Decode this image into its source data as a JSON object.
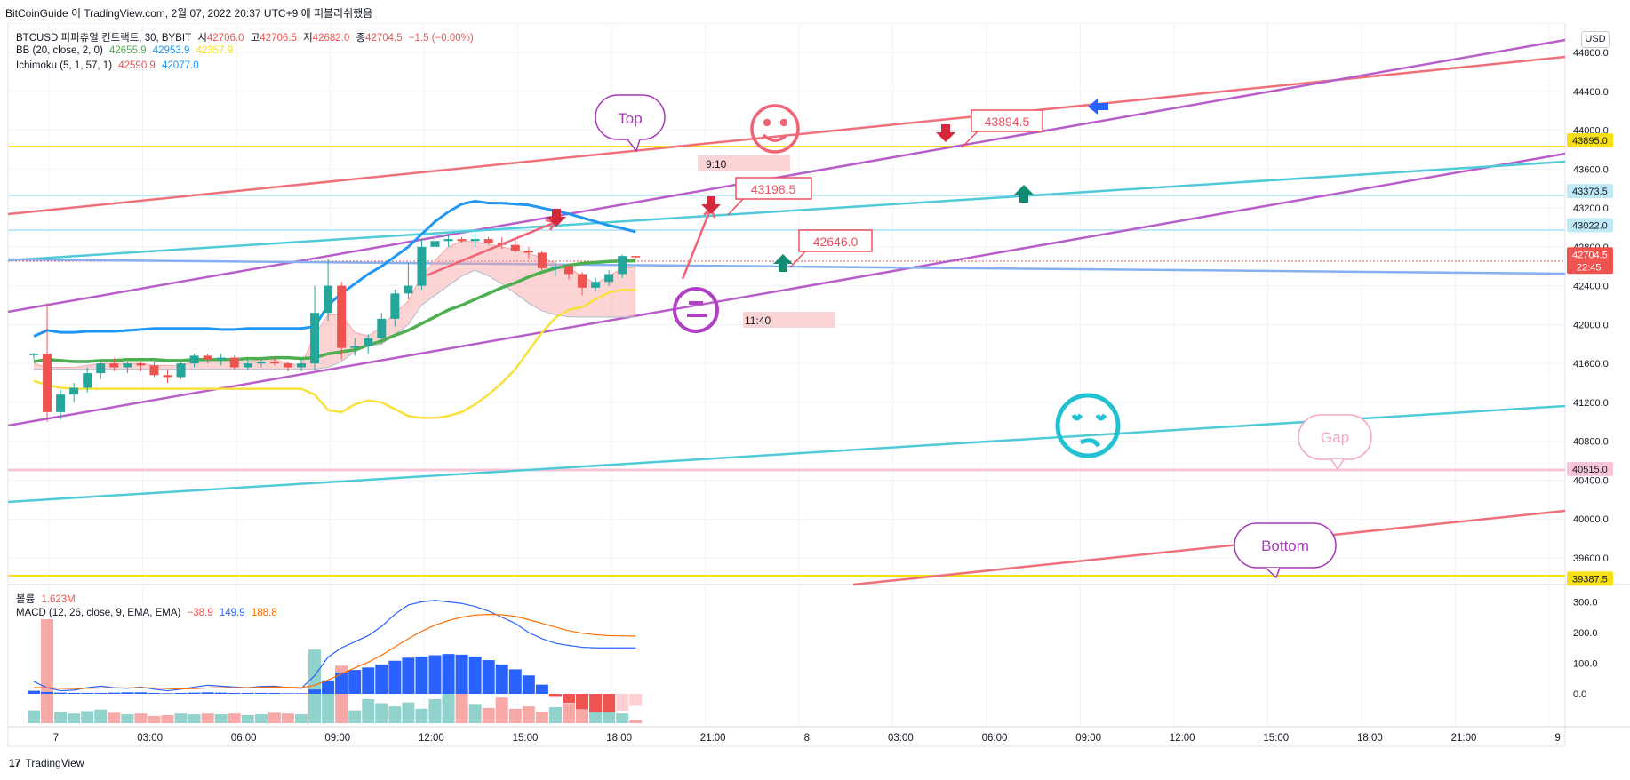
{
  "header": {
    "caption": "BitCoinGuide 이 TradingView.com, 2월 07, 2022 20:37 UTC+9 에 퍼블리쉬했음"
  },
  "legend": {
    "symbol": "BTCUSD 퍼피츄얼 컨트랙트, 30, BYBIT",
    "open_label": "시",
    "open": "42706.0",
    "high_label": "고",
    "high": "42706.5",
    "low_label": "저",
    "low": "42682.0",
    "close_label": "종",
    "close": "42704.5",
    "change": "−1.5 (−0.00%)",
    "bb_label": "BB (20, close, 2, 0)",
    "bb_basis": "42655.9",
    "bb_upper": "42953.9",
    "bb_lower": "42357.9",
    "ichimoku_label": "Ichimoku (5, 1, 57, 1)",
    "ichi_a": "42590.9",
    "ichi_b": "42077.0",
    "volume_label": "볼륨",
    "volume": "1.623M",
    "macd_label": "MACD (12, 26, close, 9, EMA, EMA)",
    "macd_hist": "−38.9",
    "macd": "149.9",
    "macd_signal": "188.8"
  },
  "currency_button": "USD",
  "price_axis": {
    "ticks": [
      "44800.0",
      "44400.0",
      "44000.0",
      "43600.0",
      "43200.0",
      "42800.0",
      "42400.0",
      "42000.0",
      "41600.0",
      "41200.0",
      "40800.0",
      "40400.0",
      "40000.0",
      "39600.0"
    ],
    "tags": [
      {
        "value": "43895.0",
        "bg": "#f7e017",
        "fg": "#131722"
      },
      {
        "value": "43373.5",
        "bg": "#bfe9f5",
        "fg": "#131722"
      },
      {
        "value": "43022.0",
        "bg": "#bfe9f5",
        "fg": "#131722"
      },
      {
        "value": "42704.5",
        "bg": "#ef5350",
        "fg": "#ffffff"
      },
      {
        "value": "40515.0",
        "bg": "#f8c4d8",
        "fg": "#131722"
      },
      {
        "value": "39387.5",
        "bg": "#f7e017",
        "fg": "#131722"
      }
    ],
    "countdown": "22:45"
  },
  "macd_axis": {
    "ticks": [
      "300.0",
      "200.0",
      "100.0",
      "0.0"
    ]
  },
  "time_axis": {
    "ticks": [
      "7",
      "03:00",
      "06:00",
      "09:00",
      "12:00",
      "15:00",
      "18:00",
      "21:00",
      "8",
      "03:00",
      "06:00",
      "09:00",
      "12:00",
      "15:00",
      "18:00",
      "21:00",
      "9"
    ]
  },
  "annotations": {
    "top": "Top",
    "bottom": "Bottom",
    "gap": "Gap",
    "price1": "43894.5",
    "price2": "43198.5",
    "price3": "42646.0",
    "time1": "9:10",
    "time2": "11:40"
  },
  "footer": {
    "brand": "TradingView"
  },
  "chart_data": {
    "type": "candlestick",
    "symbol": "BTCUSD",
    "timeframe": "30",
    "y_range": [
      39300,
      45000
    ],
    "candles": [
      [
        41690,
        41710,
        41640,
        41700
      ],
      [
        41700,
        42220,
        41000,
        41100
      ],
      [
        41100,
        41330,
        41020,
        41280
      ],
      [
        41280,
        41400,
        41200,
        41350
      ],
      [
        41350,
        41560,
        41300,
        41500
      ],
      [
        41500,
        41640,
        41440,
        41600
      ],
      [
        41600,
        41660,
        41520,
        41560
      ],
      [
        41560,
        41620,
        41500,
        41600
      ],
      [
        41600,
        41620,
        41520,
        41580
      ],
      [
        41580,
        41620,
        41460,
        41480
      ],
      [
        41480,
        41540,
        41400,
        41460
      ],
      [
        41460,
        41620,
        41440,
        41600
      ],
      [
        41600,
        41700,
        41560,
        41680
      ],
      [
        41680,
        41700,
        41600,
        41640
      ],
      [
        41640,
        41700,
        41580,
        41660
      ],
      [
        41660,
        41680,
        41540,
        41560
      ],
      [
        41560,
        41640,
        41540,
        41600
      ],
      [
        41600,
        41640,
        41560,
        41620
      ],
      [
        41620,
        41660,
        41580,
        41600
      ],
      [
        41600,
        41620,
        41520,
        41560
      ],
      [
        41560,
        41640,
        41520,
        41600
      ],
      [
        41600,
        42400,
        41540,
        42120
      ],
      [
        42120,
        42680,
        42040,
        42400
      ],
      [
        42400,
        42440,
        41640,
        41760
      ],
      [
        41760,
        41860,
        41680,
        41780
      ],
      [
        41780,
        41900,
        41700,
        41860
      ],
      [
        41860,
        42120,
        41800,
        42060
      ],
      [
        42060,
        42360,
        41980,
        42320
      ],
      [
        42320,
        42640,
        42260,
        42400
      ],
      [
        42400,
        42880,
        42360,
        42800
      ],
      [
        42800,
        42920,
        42660,
        42860
      ],
      [
        42860,
        42920,
        42800,
        42880
      ],
      [
        42880,
        42900,
        42840,
        42860
      ],
      [
        42860,
        42980,
        42800,
        42880
      ],
      [
        42880,
        42900,
        42820,
        42840
      ],
      [
        42840,
        42900,
        42780,
        42820
      ],
      [
        42820,
        42880,
        42740,
        42760
      ],
      [
        42760,
        42800,
        42680,
        42740
      ],
      [
        42740,
        42760,
        42560,
        42580
      ],
      [
        42580,
        42640,
        42500,
        42600
      ],
      [
        42600,
        42620,
        42460,
        42520
      ],
      [
        42520,
        42540,
        42300,
        42380
      ],
      [
        42380,
        42480,
        42340,
        42440
      ],
      [
        42440,
        42560,
        42400,
        42520
      ],
      [
        42520,
        42720,
        42480,
        42706
      ],
      [
        42706,
        42706.5,
        42682,
        42704.5
      ]
    ],
    "bb_basis": [
      41620,
      41640,
      41630,
      41620,
      41620,
      41630,
      41630,
      41640,
      41640,
      41640,
      41630,
      41630,
      41640,
      41640,
      41640,
      41640,
      41650,
      41650,
      41660,
      41660,
      41650,
      41660,
      41700,
      41720,
      41740,
      41790,
      41830,
      41890,
      41940,
      42010,
      42080,
      42150,
      42200,
      42260,
      42320,
      42380,
      42430,
      42490,
      42540,
      42580,
      42610,
      42630,
      42640,
      42650,
      42655,
      42656
    ],
    "bb_upper": [
      41880,
      41940,
      41920,
      41920,
      41930,
      41930,
      41930,
      41940,
      41950,
      41960,
      41960,
      41960,
      41960,
      41960,
      41950,
      41950,
      41960,
      41960,
      41960,
      41960,
      41960,
      41980,
      42200,
      42320,
      42420,
      42520,
      42600,
      42700,
      42800,
      42930,
      43060,
      43160,
      43240,
      43270,
      43250,
      43250,
      43240,
      43230,
      43200,
      43170,
      43140,
      43100,
      43060,
      43020,
      42990,
      42954
    ],
    "bb_lower": [
      41420,
      41380,
      41350,
      41340,
      41340,
      41340,
      41340,
      41340,
      41340,
      41340,
      41340,
      41340,
      41340,
      41340,
      41340,
      41340,
      41340,
      41340,
      41340,
      41340,
      41340,
      41280,
      41120,
      41100,
      41180,
      41220,
      41200,
      41130,
      41060,
      41040,
      41040,
      41060,
      41100,
      41180,
      41280,
      41400,
      41540,
      41730,
      41920,
      42070,
      42150,
      42180,
      42260,
      42330,
      42358,
      42358
    ],
    "ichimoku_a": [
      41600,
      41560,
      41560,
      41560,
      41580,
      41600,
      41600,
      41600,
      41600,
      41580,
      41580,
      41580,
      41620,
      41640,
      41640,
      41620,
      41620,
      41640,
      41640,
      41600,
      41580,
      41900,
      42100,
      42100,
      41920,
      41880,
      41980,
      42120,
      42240,
      42500,
      42660,
      42800,
      42860,
      42850,
      42830,
      42800,
      42770,
      42730,
      42690,
      42630,
      42580,
      42500,
      42420,
      42500,
      42580,
      42590
    ],
    "ichimoku_b": [
      41540,
      41540,
      41540,
      41540,
      41540,
      41540,
      41540,
      41540,
      41540,
      41540,
      41540,
      41540,
      41540,
      41540,
      41540,
      41540,
      41540,
      41540,
      41540,
      41540,
      41540,
      41540,
      41560,
      41620,
      41720,
      41780,
      41800,
      41900,
      42000,
      42200,
      42300,
      42400,
      42500,
      42560,
      42500,
      42420,
      42320,
      42220,
      42140,
      42100,
      42080,
      42077,
      42077,
      42077,
      42077,
      42077
    ],
    "volume": [
      160,
      1300,
      140,
      120,
      150,
      170,
      130,
      110,
      120,
      90,
      100,
      120,
      110,
      120,
      110,
      120,
      100,
      110,
      130,
      120,
      110,
      920,
      410,
      720,
      160,
      300,
      250,
      210,
      260,
      180,
      300,
      610,
      390,
      230,
      190,
      320,
      180,
      210,
      140,
      200,
      240,
      330,
      190,
      140,
      120,
      40
    ],
    "volume_up": [
      true,
      false,
      true,
      true,
      true,
      true,
      false,
      true,
      false,
      false,
      false,
      true,
      true,
      false,
      true,
      false,
      true,
      true,
      false,
      false,
      true,
      true,
      true,
      false,
      true,
      true,
      true,
      true,
      true,
      true,
      true,
      true,
      false,
      true,
      false,
      false,
      false,
      false,
      false,
      true,
      false,
      false,
      true,
      true,
      true,
      false
    ],
    "macd_hist": [
      10,
      6,
      4,
      3,
      3,
      3,
      4,
      5,
      5,
      3,
      2,
      3,
      4,
      5,
      4,
      3,
      3,
      3,
      3,
      2,
      2,
      14,
      44,
      70,
      78,
      86,
      96,
      108,
      118,
      122,
      126,
      130,
      128,
      122,
      110,
      96,
      80,
      60,
      30,
      -10,
      -30,
      -50,
      -60,
      -60,
      -55,
      -39
    ],
    "macd_line": [
      40,
      20,
      10,
      12,
      20,
      25,
      20,
      18,
      22,
      15,
      10,
      15,
      22,
      28,
      25,
      22,
      20,
      24,
      25,
      20,
      18,
      60,
      120,
      150,
      170,
      190,
      220,
      260,
      290,
      300,
      305,
      300,
      295,
      285,
      270,
      250,
      230,
      200,
      180,
      165,
      158,
      152,
      150,
      150,
      150,
      149.9
    ],
    "macd_signal": [
      20,
      20,
      18,
      17,
      18,
      19,
      19,
      19,
      20,
      19,
      17,
      16,
      17,
      19,
      20,
      20,
      20,
      21,
      22,
      21,
      20,
      28,
      45,
      65,
      85,
      103,
      126,
      153,
      180,
      204,
      224,
      239,
      250,
      257,
      259,
      258,
      253,
      242,
      230,
      218,
      206,
      198,
      193,
      190,
      189,
      188.8
    ]
  }
}
